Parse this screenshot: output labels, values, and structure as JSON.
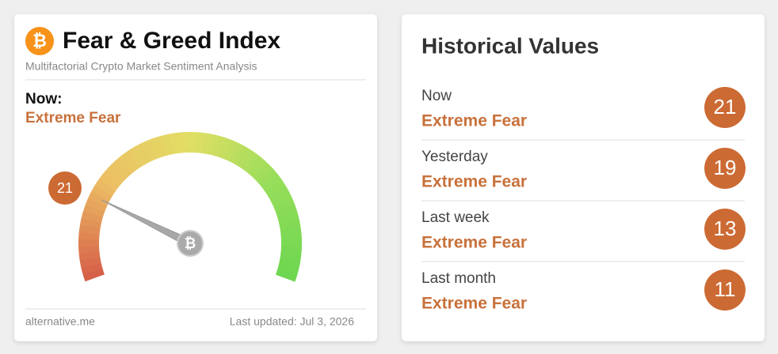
{
  "gauge": {
    "title": "Fear & Greed Index",
    "subtitle": "Multifactorial Crypto Market Sentiment Analysis",
    "now_label": "Now:",
    "classification": "Extreme Fear",
    "value": 21,
    "source": "alternative.me",
    "updated": "Last updated: Jul 3, 2026"
  },
  "history": {
    "title": "Historical Values",
    "items": [
      {
        "label": "Now",
        "classification": "Extreme Fear",
        "value": 21
      },
      {
        "label": "Yesterday",
        "classification": "Extreme Fear",
        "value": 19
      },
      {
        "label": "Last week",
        "classification": "Extreme Fear",
        "value": 13
      },
      {
        "label": "Last month",
        "classification": "Extreme Fear",
        "value": 11
      }
    ]
  }
}
